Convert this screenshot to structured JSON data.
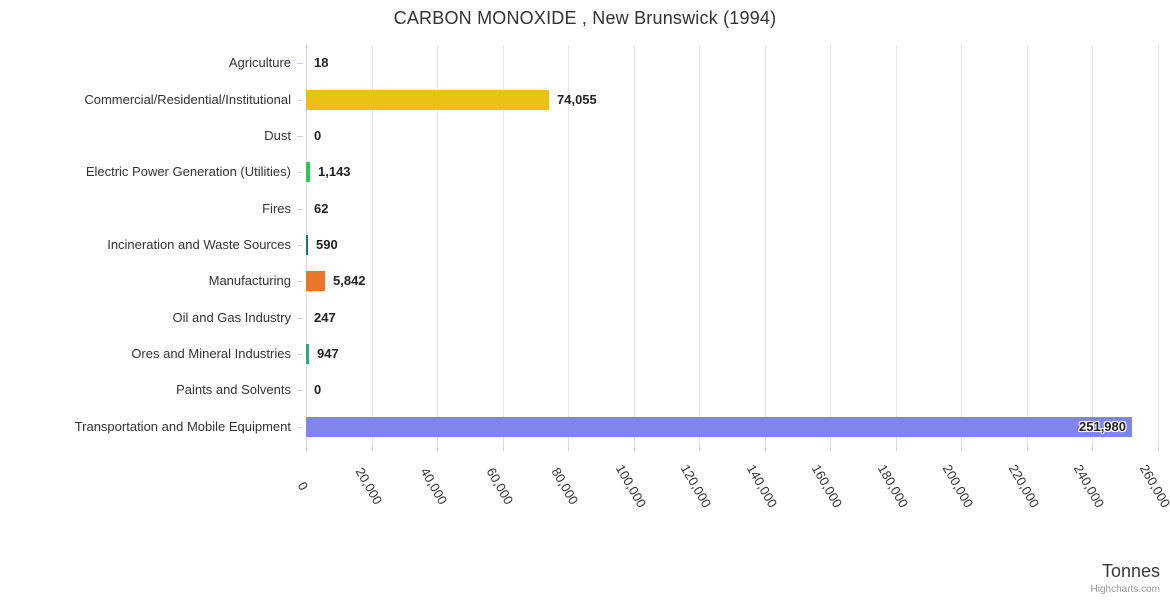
{
  "chart_data": {
    "type": "bar",
    "orientation": "horizontal",
    "title": "CARBON MONOXIDE , New Brunswick (1994)",
    "xlabel": "Tonnes",
    "categories": [
      "Agriculture",
      "Commercial/Residential/Institutional",
      "Dust",
      "Electric Power Generation (Utilities)",
      "Fires",
      "Incineration and Waste Sources",
      "Manufacturing",
      "Oil and Gas Industry",
      "Ores and Mineral Industries",
      "Paints and Solvents",
      "Transportation and Mobile Equipment"
    ],
    "values": [
      18,
      74055,
      0,
      1143,
      62,
      590,
      5842,
      247,
      947,
      0,
      251980
    ],
    "value_labels": [
      "18",
      "74,055",
      "0",
      "1,143",
      "62",
      "590",
      "5,842",
      "247",
      "947",
      "0",
      "251,980"
    ],
    "point_colors": [
      null,
      "#ecc115",
      null,
      "#33c657",
      null,
      "#17767c",
      "#e8762c",
      null,
      "#2aa87e",
      null,
      "#8085e9"
    ],
    "xlim": [
      0,
      260000
    ],
    "tick_interval": 20000,
    "tick_labels": [
      "0",
      "20,000",
      "40,000",
      "60,000",
      "80,000",
      "100,000",
      "120,000",
      "140,000",
      "160,000",
      "180,000",
      "200,000",
      "220,000",
      "240,000",
      "260,000"
    ],
    "grid": true,
    "legend": false
  },
  "credits": "Highcharts.com",
  "colors": {
    "axis_line": "#ccd6eb",
    "grid_line": "#e6e6e6",
    "text": "#333333",
    "credit_text": "#999999"
  }
}
